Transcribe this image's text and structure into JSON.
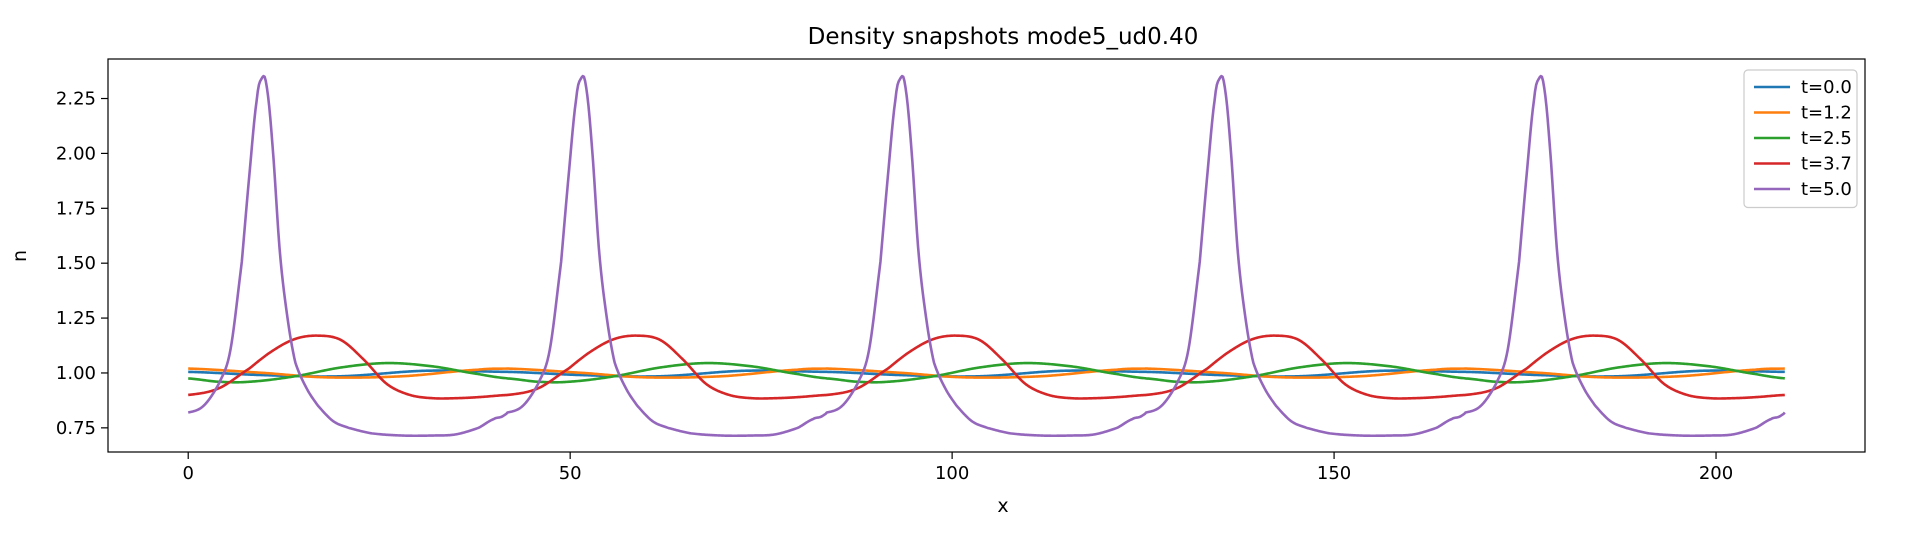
{
  "chart_data": {
    "type": "line",
    "title": "Density snapshots  mode5_ud0.40",
    "xlabel": "x",
    "ylabel": "n",
    "xlim": [
      -10.5,
      219.5
    ],
    "ylim": [
      0.64,
      2.43
    ],
    "xticks": [
      0,
      50,
      100,
      150,
      200
    ],
    "xtick_labels": [
      "0",
      "50",
      "100",
      "150",
      "200"
    ],
    "yticks": [
      0.75,
      1.0,
      1.25,
      1.5,
      1.75,
      2.0,
      2.25
    ],
    "ytick_labels": [
      "0.75",
      "1.00",
      "1.25",
      "1.50",
      "1.75",
      "2.00",
      "2.25"
    ],
    "grid": false,
    "legend_position": "top-right",
    "x_range": [
      0,
      209
    ],
    "period": 41.8,
    "series": [
      {
        "name": "t=0.0",
        "color": "#1f77b4",
        "phase_x": [
          0,
          10,
          20,
          31,
          42
        ],
        "phase_y": [
          1.005,
          0.99,
          0.985,
          1.01,
          1.005
        ]
      },
      {
        "name": "t=1.2",
        "color": "#ff7f0e",
        "phase_x": [
          0,
          10,
          18,
          28,
          38,
          42
        ],
        "phase_y": [
          1.02,
          1.0,
          0.98,
          0.985,
          1.015,
          1.02
        ]
      },
      {
        "name": "t=2.5",
        "color": "#2ca02c",
        "phase_x": [
          0,
          4,
          8,
          14,
          20,
          26,
          32,
          38,
          42
        ],
        "phase_y": [
          0.975,
          0.96,
          0.96,
          0.985,
          1.025,
          1.045,
          1.03,
          0.995,
          0.975
        ]
      },
      {
        "name": "t=3.7",
        "color": "#d62728",
        "phase_x": [
          0,
          4,
          8,
          11,
          14,
          17,
          20,
          23,
          26,
          29,
          32,
          35,
          38,
          42
        ],
        "phase_y": [
          0.9,
          0.93,
          1.02,
          1.1,
          1.155,
          1.17,
          1.15,
          1.06,
          0.95,
          0.9,
          0.885,
          0.885,
          0.89,
          0.9
        ]
      },
      {
        "name": "t=5.0",
        "color": "#9467bd",
        "phase_x": [
          0,
          2,
          4,
          5.5,
          7,
          8,
          9,
          9.6,
          10.2,
          11,
          12,
          13,
          14,
          15.5,
          17,
          19,
          21,
          24,
          28,
          32,
          35,
          38,
          40,
          41,
          42
        ],
        "phase_y": [
          0.82,
          0.85,
          0.95,
          1.1,
          1.5,
          1.9,
          2.25,
          2.34,
          2.32,
          2.05,
          1.55,
          1.25,
          1.05,
          0.93,
          0.85,
          0.78,
          0.75,
          0.725,
          0.715,
          0.715,
          0.72,
          0.75,
          0.79,
          0.8,
          0.82
        ]
      }
    ]
  }
}
